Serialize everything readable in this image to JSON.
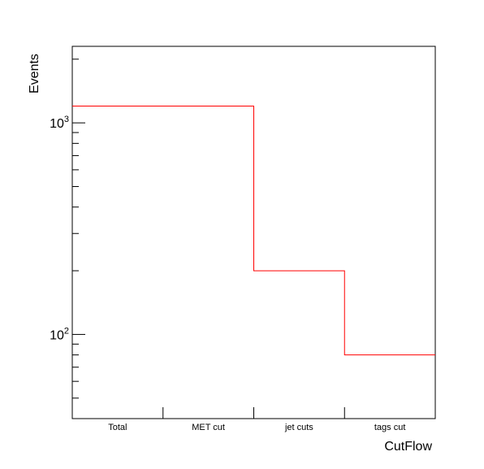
{
  "chart_data": {
    "type": "bar",
    "categories": [
      "Total",
      "MET cut",
      "jet cuts",
      "tags cut"
    ],
    "values": [
      1200,
      1200,
      200,
      80
    ],
    "title": "",
    "xlabel": "CutFlow",
    "ylabel": "Events",
    "ylim": [
      40,
      2300
    ],
    "y_scale": "log",
    "y_tick_labels": [
      {
        "base": "10",
        "exp": "2",
        "value": 100
      },
      {
        "base": "10",
        "exp": "3",
        "value": 1000
      }
    ],
    "grid": false,
    "legend": "none",
    "colors": {
      "series": "#ff0000",
      "axis": "#000000",
      "background": "#ffffff"
    }
  }
}
